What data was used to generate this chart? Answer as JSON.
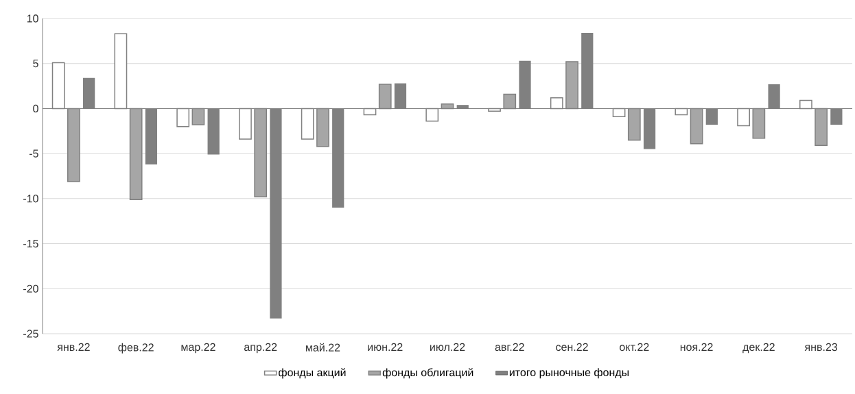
{
  "chart_data": {
    "type": "bar",
    "categories": [
      "янв.22",
      "фев.22",
      "мар.22",
      "апр.22",
      "май.22",
      "июн.22",
      "июл.22",
      "авг.22",
      "сен.22",
      "окт.22",
      "ноя.22",
      "дек.22",
      "янв.23"
    ],
    "series": [
      {
        "name": "фонды акций",
        "color": "#ffffff",
        "values": [
          5.1,
          8.3,
          -2.0,
          -3.4,
          -3.4,
          -0.7,
          -1.4,
          -0.3,
          1.2,
          -0.9,
          -0.7,
          -1.9,
          0.9
        ]
      },
      {
        "name": "фонды облигаций",
        "color": "#a6a6a6",
        "values": [
          -8.1,
          -10.1,
          -1.8,
          -9.8,
          -4.2,
          2.7,
          0.5,
          1.6,
          5.2,
          -3.5,
          -3.9,
          -3.3,
          -4.1
        ]
      },
      {
        "name": "итого рыночные фонды",
        "color": "#808080",
        "values": [
          3.4,
          -6.2,
          -5.1,
          -23.3,
          -11.0,
          2.8,
          0.4,
          5.3,
          8.4,
          -4.5,
          -1.8,
          2.7,
          -1.8
        ]
      }
    ],
    "ylim": [
      -25,
      10
    ],
    "yticks": [
      -25,
      -20,
      -15,
      -10,
      -5,
      0,
      5,
      10
    ],
    "grid": "y",
    "legend": "bottom"
  }
}
